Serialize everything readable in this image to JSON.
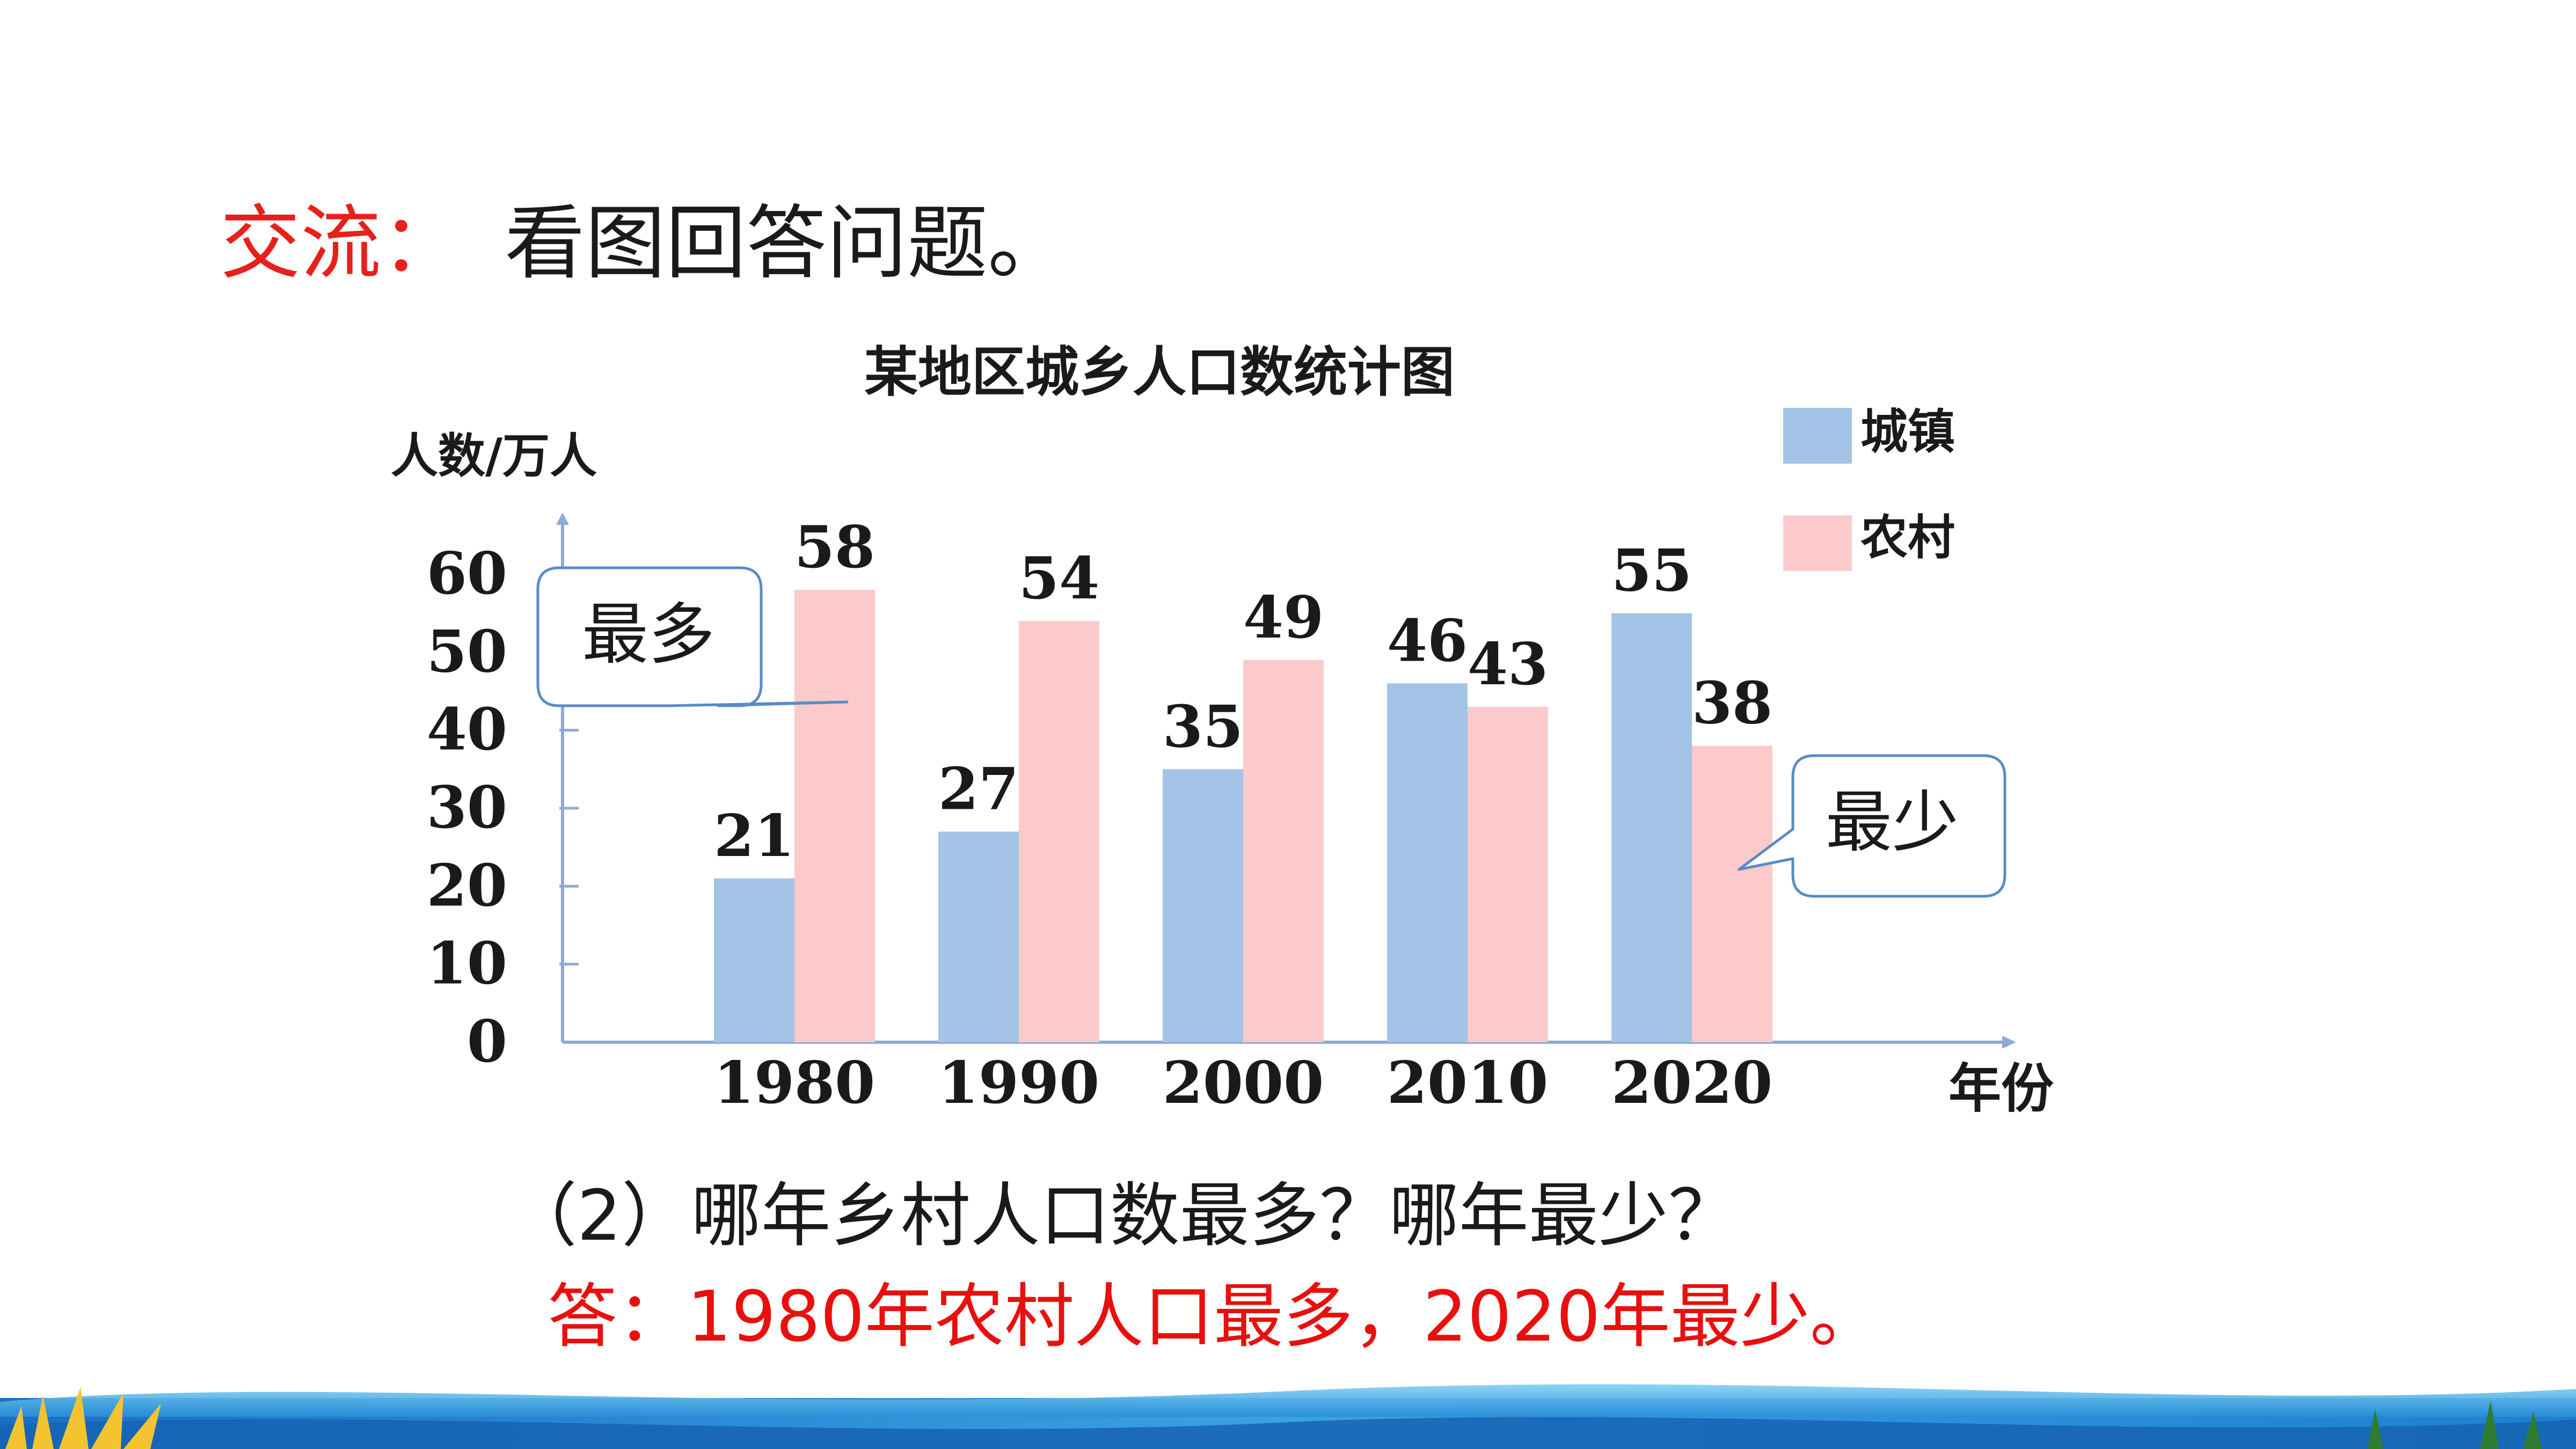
{
  "heading": {
    "prefix": "交流：",
    "text": "看图回答问题。"
  },
  "colors": {
    "urban": "#a3c4e6",
    "rural": "#fccaca",
    "prefix_red": "#e8201a",
    "answer_red": "#e8100e",
    "callout_border": "#5a8ac7",
    "axis": "#8eaad6"
  },
  "chart_data": {
    "type": "bar",
    "title": "某地区城乡人口数统计图",
    "ylabel": "人数/万人",
    "xlabel": "年份",
    "ylim": [
      0,
      60
    ],
    "yticks": [
      0,
      10,
      20,
      30,
      40,
      50,
      60
    ],
    "categories": [
      "1980",
      "1990",
      "2000",
      "2010",
      "2020"
    ],
    "legend_position": "top-right",
    "series": [
      {
        "name": "城镇",
        "values": [
          21,
          27,
          35,
          46,
          55
        ]
      },
      {
        "name": "农村",
        "values": [
          58,
          54,
          49,
          43,
          38
        ]
      }
    ],
    "annotations": [
      {
        "text": "最多",
        "target": "1980 农村"
      },
      {
        "text": "最少",
        "target": "2020 农村"
      }
    ]
  },
  "question": "（2）哪年乡村人口数最多？哪年最少？",
  "answer": "答：1980年农村人口最多，2020年最少。",
  "footer": {
    "decoration": "ocean-wave-banner"
  }
}
